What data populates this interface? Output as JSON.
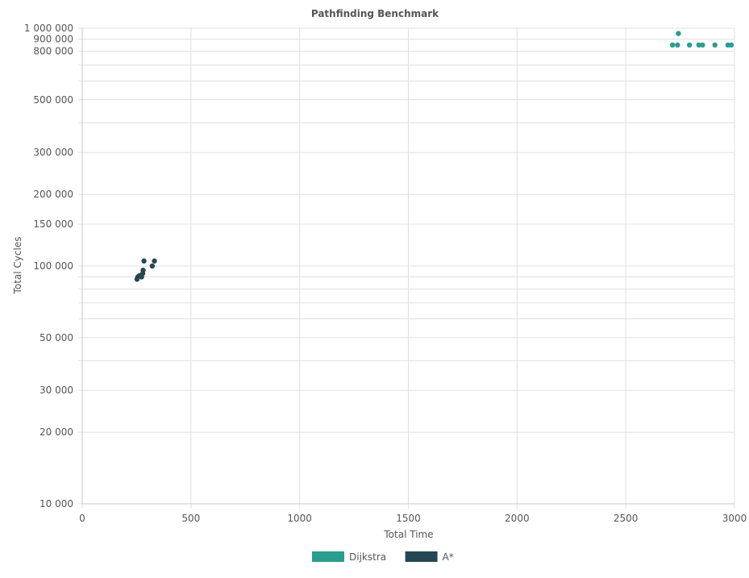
{
  "chart_data": {
    "type": "scatter",
    "title": "Pathfinding Benchmark",
    "xlabel": "Total Time",
    "ylabel": "Total Cycles",
    "xlim": [
      0,
      3000
    ],
    "ylim": [
      10000,
      1000000
    ],
    "y_scale": "log",
    "x_ticks": [
      0,
      500,
      1000,
      1500,
      2000,
      2500,
      3000
    ],
    "x_tick_labels": [
      "0",
      "500",
      "1000",
      "1500",
      "2000",
      "2500",
      "3000"
    ],
    "y_ticks": [
      10000,
      20000,
      30000,
      50000,
      100000,
      150000,
      200000,
      300000,
      500000,
      800000,
      900000,
      1000000
    ],
    "y_tick_labels": [
      "10 000",
      "20 000",
      "30 000",
      "50 000",
      "100 000",
      "150 000",
      "200 000",
      "300 000",
      "500 000",
      "800 000",
      "900 000",
      "1 000 000"
    ],
    "y_minor_ticks": [
      40000,
      60000,
      70000,
      80000,
      90000,
      400000,
      600000,
      700000
    ],
    "grid": true,
    "legend_position": "bottom-center",
    "series": [
      {
        "name": "Dijkstra",
        "color": "#2a9d8f",
        "points": [
          [
            2715,
            850000
          ],
          [
            2738,
            850000
          ],
          [
            2742,
            950000
          ],
          [
            2793,
            850000
          ],
          [
            2836,
            850000
          ],
          [
            2853,
            850000
          ],
          [
            2910,
            850000
          ],
          [
            2970,
            850000
          ],
          [
            2985,
            850000
          ]
        ]
      },
      {
        "name": "A*",
        "color": "#264653",
        "points": [
          [
            252,
            88000
          ],
          [
            256,
            90000
          ],
          [
            262,
            91000
          ],
          [
            273,
            90000
          ],
          [
            280,
            96000
          ],
          [
            278,
            93000
          ],
          [
            284,
            105000
          ],
          [
            322,
            100000
          ],
          [
            332,
            105000
          ]
        ]
      }
    ]
  }
}
